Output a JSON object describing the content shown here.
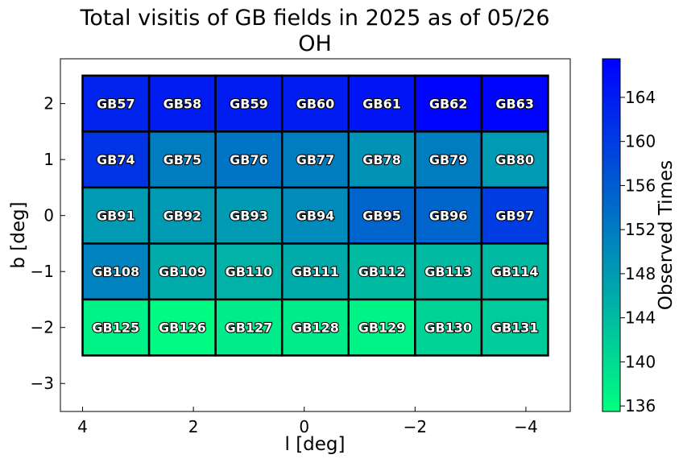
{
  "chart_data": {
    "type": "heatmap",
    "title": "Total visitis of GB fields in 2025 as of 05/26",
    "subtitle": "OH",
    "xlabel": "l [deg]",
    "ylabel": "b [deg]",
    "xlim": [
      4.4,
      -4.8
    ],
    "ylim": [
      -3.5,
      2.8
    ],
    "x_ticks": [
      4,
      2,
      0,
      -2,
      -4
    ],
    "x_tick_labels": [
      "4",
      "2",
      "0",
      "−2",
      "−4"
    ],
    "y_ticks": [
      2,
      1,
      0,
      -1,
      -2,
      -3
    ],
    "y_tick_labels": [
      "2",
      "1",
      "0",
      "−1",
      "−2",
      "−3"
    ],
    "colorbar": {
      "label": "Observed Times",
      "range": [
        135.5,
        167.5
      ],
      "ticks": [
        136,
        140,
        144,
        148,
        152,
        156,
        160,
        164
      ],
      "colormap": "winter_r",
      "low_color": "#00ff80",
      "high_color": "#0000ff"
    },
    "grid": false,
    "cells": [
      {
        "name": "GB57",
        "l": 3.4,
        "b": 2.0,
        "value": 163
      },
      {
        "name": "GB58",
        "l": 2.2,
        "b": 2.0,
        "value": 164
      },
      {
        "name": "GB59",
        "l": 1.0,
        "b": 2.0,
        "value": 164
      },
      {
        "name": "GB60",
        "l": -0.2,
        "b": 2.0,
        "value": 164
      },
      {
        "name": "GB61",
        "l": -1.4,
        "b": 2.0,
        "value": 165
      },
      {
        "name": "GB62",
        "l": -2.6,
        "b": 2.0,
        "value": 167
      },
      {
        "name": "GB63",
        "l": -3.8,
        "b": 2.0,
        "value": 167
      },
      {
        "name": "GB74",
        "l": 3.4,
        "b": 1.0,
        "value": 161
      },
      {
        "name": "GB75",
        "l": 2.2,
        "b": 1.0,
        "value": 152
      },
      {
        "name": "GB76",
        "l": 1.0,
        "b": 1.0,
        "value": 153
      },
      {
        "name": "GB77",
        "l": -0.2,
        "b": 1.0,
        "value": 152
      },
      {
        "name": "GB78",
        "l": -1.4,
        "b": 1.0,
        "value": 149
      },
      {
        "name": "GB79",
        "l": -2.6,
        "b": 1.0,
        "value": 152
      },
      {
        "name": "GB80",
        "l": -3.8,
        "b": 1.0,
        "value": 148
      },
      {
        "name": "GB91",
        "l": 3.4,
        "b": 0.0,
        "value": 148
      },
      {
        "name": "GB92",
        "l": 2.2,
        "b": 0.0,
        "value": 148
      },
      {
        "name": "GB93",
        "l": 1.0,
        "b": 0.0,
        "value": 148
      },
      {
        "name": "GB94",
        "l": -0.2,
        "b": 0.0,
        "value": 150
      },
      {
        "name": "GB95",
        "l": -1.4,
        "b": 0.0,
        "value": 155
      },
      {
        "name": "GB96",
        "l": -2.6,
        "b": 0.0,
        "value": 155
      },
      {
        "name": "GB97",
        "l": -3.8,
        "b": 0.0,
        "value": 160
      },
      {
        "name": "GB108",
        "l": 3.4,
        "b": -1.0,
        "value": 151
      },
      {
        "name": "GB109",
        "l": 2.2,
        "b": -1.0,
        "value": 146
      },
      {
        "name": "GB110",
        "l": 1.0,
        "b": -1.0,
        "value": 145
      },
      {
        "name": "GB111",
        "l": -0.2,
        "b": -1.0,
        "value": 146
      },
      {
        "name": "GB112",
        "l": -1.4,
        "b": -1.0,
        "value": 144
      },
      {
        "name": "GB113",
        "l": -2.6,
        "b": -1.0,
        "value": 144
      },
      {
        "name": "GB114",
        "l": -3.8,
        "b": -1.0,
        "value": 144
      },
      {
        "name": "GB125",
        "l": 3.4,
        "b": -2.0,
        "value": 137
      },
      {
        "name": "GB126",
        "l": 2.2,
        "b": -2.0,
        "value": 136
      },
      {
        "name": "GB127",
        "l": 1.0,
        "b": -2.0,
        "value": 138
      },
      {
        "name": "GB128",
        "l": -0.2,
        "b": -2.0,
        "value": 138
      },
      {
        "name": "GB129",
        "l": -1.4,
        "b": -2.0,
        "value": 137
      },
      {
        "name": "GB130",
        "l": -2.6,
        "b": -2.0,
        "value": 141
      },
      {
        "name": "GB131",
        "l": -3.8,
        "b": -2.0,
        "value": 142
      }
    ]
  }
}
